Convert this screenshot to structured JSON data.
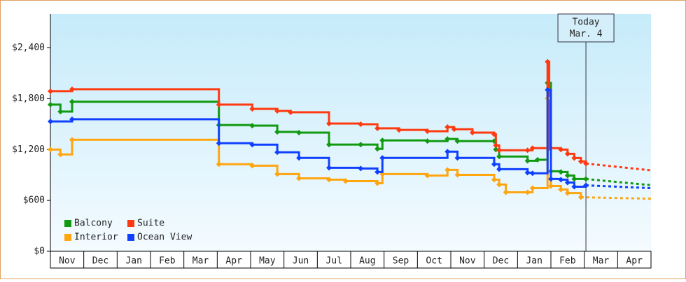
{
  "chart_data": {
    "type": "step",
    "categories": [
      "Nov",
      "Dec",
      "Jan",
      "Feb",
      "Mar",
      "Apr",
      "May",
      "Jun",
      "Jul",
      "Aug",
      "Sep",
      "Oct",
      "Nov",
      "Dec",
      "Jan",
      "Feb",
      "Mar",
      "Apr"
    ],
    "xlim": [
      0,
      18
    ],
    "ylim": [
      0,
      2800
    ],
    "yticks": [
      {
        "value": 0,
        "label": "$0"
      },
      {
        "value": 600,
        "label": "$600"
      },
      {
        "value": 1200,
        "label": "$1,200"
      },
      {
        "value": 1800,
        "label": "$1,800"
      },
      {
        "value": 2400,
        "label": "$2,400"
      }
    ],
    "annotation": {
      "x": 16.05,
      "label": [
        "Today",
        "Mar. 4"
      ]
    },
    "series": [
      {
        "name": "Balcony",
        "color": "#109a10",
        "x": [
          0,
          0.3,
          0.65,
          5.05,
          6.05,
          6.8,
          7.45,
          8.35,
          9.3,
          9.8,
          9.95,
          11.3,
          11.9,
          12.2,
          13.3,
          13.35,
          13.45,
          14.3,
          14.6,
          14.9,
          15.0,
          15.3,
          15.5,
          15.7,
          16.05
        ],
        "values": [
          1730,
          1648,
          1764,
          1490,
          1482,
          1408,
          1400,
          1259,
          1259,
          1209,
          1308,
          1300,
          1325,
          1300,
          1300,
          1200,
          1118,
          1068,
          1080,
          1987,
          944,
          936,
          894,
          853,
          853
        ],
        "forecast_x": [
          16.05,
          18
        ],
        "forecast_values": [
          853,
          780
        ]
      },
      {
        "name": "Suite",
        "color": "#ff3a10",
        "x": [
          0,
          0.65,
          5.05,
          6.05,
          6.8,
          7.2,
          8.35,
          9.3,
          9.8,
          10.45,
          11.3,
          11.9,
          12.1,
          12.65,
          13.3,
          13.35,
          13.45,
          14.3,
          14.45,
          14.9,
          14.95,
          15.3,
          15.5,
          15.7,
          15.9,
          16.05
        ],
        "values": [
          1888,
          1912,
          1730,
          1680,
          1656,
          1640,
          1507,
          1499,
          1450,
          1432,
          1416,
          1466,
          1440,
          1400,
          1380,
          1250,
          1192,
          1192,
          1217,
          2236,
          1217,
          1200,
          1150,
          1100,
          1060,
          1035
        ],
        "forecast_x": [
          16.05,
          18
        ],
        "forecast_values": [
          1035,
          955
        ]
      },
      {
        "name": "Interior",
        "color": "#ffa510",
        "x": [
          0,
          0.3,
          0.65,
          5.05,
          6.05,
          6.8,
          7.45,
          8.35,
          8.85,
          9.8,
          9.95,
          11.3,
          11.9,
          12.2,
          13.3,
          13.45,
          13.65,
          14.3,
          14.45,
          14.9,
          15.0,
          15.3,
          15.5,
          15.9
        ],
        "values": [
          1200,
          1143,
          1316,
          1027,
          1010,
          911,
          861,
          845,
          828,
          803,
          911,
          894,
          960,
          902,
          845,
          787,
          696,
          696,
          745,
          1805,
          770,
          729,
          687,
          638
        ],
        "forecast_x": [
          15.9,
          18
        ],
        "forecast_values": [
          638,
          620
        ]
      },
      {
        "name": "Ocean View",
        "color": "#1040ff",
        "x": [
          0,
          0.65,
          5.05,
          6.05,
          6.8,
          7.45,
          8.35,
          9.3,
          9.8,
          9.95,
          11.9,
          12.2,
          13.3,
          13.45,
          14.3,
          14.45,
          14.9,
          15.0,
          15.3,
          15.5,
          15.7,
          16.05
        ],
        "values": [
          1532,
          1557,
          1275,
          1258,
          1168,
          1101,
          985,
          977,
          936,
          1101,
          1176,
          1101,
          1027,
          969,
          927,
          920,
          1904,
          853,
          845,
          811,
          762,
          778
        ],
        "forecast_x": [
          16.05,
          18
        ],
        "forecast_values": [
          778,
          745
        ]
      }
    ],
    "legend": "lower left"
  }
}
